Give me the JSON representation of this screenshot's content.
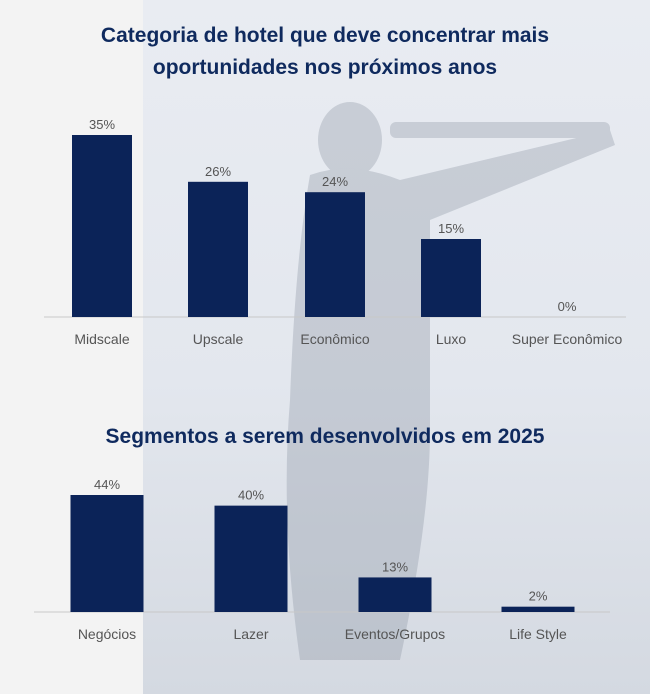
{
  "colors": {
    "bar": "#0b2358",
    "title": "#0f2a5e",
    "axis": "#c8c8c8",
    "text": "#555555"
  },
  "chart_data": [
    {
      "type": "bar",
      "title": "Categoria de hotel que deve concentrar mais oportunidades nos próximos anos",
      "title_lines": [
        "Categoria de hotel que deve concentrar mais",
        "oportunidades nos próximos anos"
      ],
      "categories": [
        "Midscale",
        "Upscale",
        "Econômico",
        "Luxo",
        "Super Econômico"
      ],
      "values": [
        35,
        26,
        24,
        15,
        0
      ],
      "value_labels": [
        "35%",
        "26%",
        "24%",
        "15%",
        "0%"
      ],
      "ylim": [
        0,
        35
      ],
      "grid": false,
      "legend": "none"
    },
    {
      "type": "bar",
      "title": "Segmentos a serem desenvolvidos em 2025",
      "title_lines": [
        "Segmentos a serem desenvolvidos em 2025"
      ],
      "categories": [
        "Negócios",
        "Lazer",
        "Eventos/Grupos",
        "Life Style"
      ],
      "values": [
        44,
        40,
        13,
        2
      ],
      "value_labels": [
        "44%",
        "40%",
        "13%",
        "2%"
      ],
      "ylim": [
        0,
        44
      ],
      "grid": false,
      "legend": "none"
    }
  ]
}
